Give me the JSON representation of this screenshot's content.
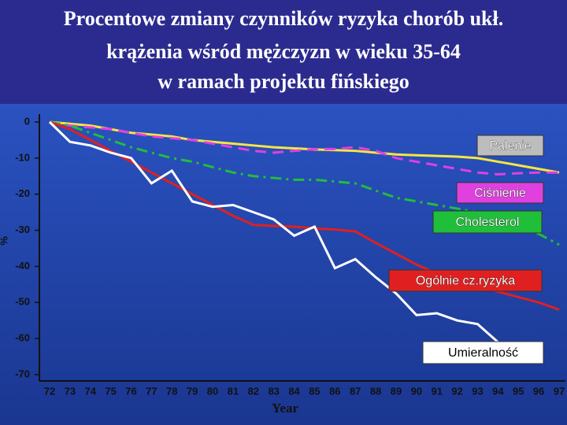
{
  "chart_data": {
    "type": "line",
    "title": [
      "Procentowe zmiany czynników ryzyka chorób ukł.",
      "krążenia wśród mężczyzn w wieku 35-64",
      "w ramach projektu fińskiego"
    ],
    "xlabel": "Year",
    "ylabel": "%",
    "categories": [
      "72",
      "73",
      "74",
      "75",
      "76",
      "77",
      "78",
      "79",
      "80",
      "81",
      "82",
      "83",
      "84",
      "85",
      "86",
      "87",
      "88",
      "89",
      "90",
      "91",
      "92",
      "93",
      "94",
      "95",
      "96",
      "97"
    ],
    "ylim": [
      -70,
      0
    ],
    "yticks": [
      0,
      -10,
      -20,
      -30,
      -40,
      -50,
      -60,
      -70
    ],
    "series": [
      {
        "name": "Palenie",
        "color": "#f5e642",
        "dash": "solid",
        "values": [
          0,
          -0.5,
          -1,
          -2,
          -3,
          -3.5,
          -4,
          -5,
          -5.5,
          -6,
          -6.5,
          -7,
          -7.3,
          -7.6,
          -7.8,
          -8,
          -8.5,
          -9,
          -9.2,
          -9.4,
          -9.6,
          -10,
          -11,
          -12,
          -13,
          -14
        ]
      },
      {
        "name": "Ciśnienie",
        "color": "#e040e0",
        "dash": "dash",
        "values": [
          0,
          -1,
          -1.5,
          -2,
          -3,
          -4,
          -4.5,
          -5,
          -6,
          -7,
          -8,
          -8.5,
          -8,
          -7.5,
          -7.5,
          -7,
          -8,
          -10,
          -11,
          -12,
          -13,
          -14,
          -14.5,
          -14.2,
          -14,
          -14
        ]
      },
      {
        "name": "Cholesterol",
        "color": "#1fbf3a",
        "dash": "dashdot",
        "values": [
          0,
          -1,
          -3,
          -5,
          -7,
          -8.5,
          -10,
          -11,
          -12.5,
          -14,
          -15,
          -15.5,
          -16,
          -16,
          -16.5,
          -17,
          -19,
          -21,
          -22,
          -23,
          -24,
          -25,
          -27,
          -29,
          -31,
          -34
        ]
      },
      {
        "name": "Ogólnie cz.ryzyka",
        "color": "#e02020",
        "dash": "solid",
        "values": [
          0,
          -2,
          -5,
          -8,
          -11,
          -14,
          -17,
          -20,
          -23,
          -26,
          -28.5,
          -28.8,
          -29,
          -29.5,
          -29.8,
          -30.3,
          -33.5,
          -36.5,
          -39.5,
          -42,
          -44,
          -45.5,
          -47,
          -48.5,
          -50,
          -52
        ]
      },
      {
        "name": "Umieralność",
        "color": "#ffffff",
        "dash": "solid",
        "values": [
          0,
          -5.5,
          -6.5,
          -8.5,
          -10,
          -17,
          -13.5,
          -22,
          -23.5,
          -23,
          -25,
          -27,
          -31.5,
          -29,
          -40.5,
          -38,
          -43,
          -47.5,
          -53.5,
          -53,
          -55,
          -56,
          -61,
          null,
          null,
          null
        ]
      }
    ]
  }
}
